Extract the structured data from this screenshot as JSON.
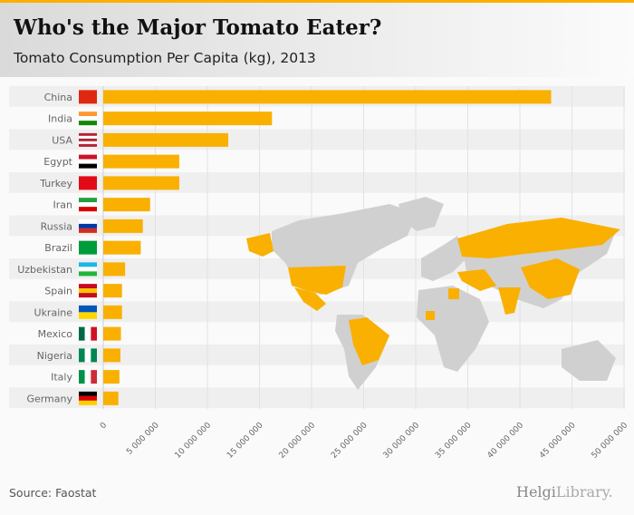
{
  "header": {
    "title": "Who's the Major Tomato Eater?",
    "subtitle": "Tomato Consumption Per Capita (kg), 2013"
  },
  "footer": {
    "source": "Source: Faostat",
    "logo_main": "Helgi",
    "logo_sub": "Library."
  },
  "colors": {
    "bar": "#f9b000",
    "accent": "#f9b000",
    "map_land": "#d0d0d0",
    "row_alt": "#efefef"
  },
  "chart_data": {
    "type": "bar",
    "orientation": "horizontal",
    "title": "Who's the Major Tomato Eater?",
    "subtitle": "Tomato Consumption Per Capita (kg), 2013",
    "categories": [
      "China",
      "India",
      "USA",
      "Egypt",
      "Turkey",
      "Iran",
      "Russia",
      "Brazil",
      "Uzbekistan",
      "Spain",
      "Ukraine",
      "Mexico",
      "Nigeria",
      "Italy",
      "Germany"
    ],
    "values": [
      43000000,
      16200000,
      12000000,
      7300000,
      7300000,
      4500000,
      3800000,
      3600000,
      2100000,
      1800000,
      1800000,
      1700000,
      1650000,
      1550000,
      1450000
    ],
    "xlim": [
      0,
      50000000
    ],
    "xticks": [
      0,
      5000000,
      10000000,
      15000000,
      20000000,
      25000000,
      30000000,
      35000000,
      40000000,
      45000000,
      50000000
    ],
    "xtick_labels": [
      "0",
      "5 000 000",
      "10 000 000",
      "15 000 000",
      "20 000 000",
      "25 000 000",
      "30 000 000",
      "35 000 000",
      "40 000 000",
      "45 000 000",
      "50 000 000"
    ],
    "grid": true,
    "flags": [
      [
        "#de2910"
      ],
      [
        "#ff9933",
        "#ffffff",
        "#138808"
      ],
      [
        "#b22234",
        "#ffffff",
        "#b22234",
        "#ffffff",
        "#b22234"
      ],
      [
        "#ce1126",
        "#ffffff",
        "#000000"
      ],
      [
        "#e30a17"
      ],
      [
        "#239f40",
        "#ffffff",
        "#da0000"
      ],
      [
        "#ffffff",
        "#0039a6",
        "#d52b1e"
      ],
      [
        "#009c3b"
      ],
      [
        "#1eb5e5",
        "#ffffff",
        "#1eb53a"
      ],
      [
        "#c60b1e",
        "#ffc400",
        "#c60b1e"
      ],
      [
        "#0057b7",
        "#ffd700"
      ],
      [
        "v",
        "#006847",
        "#ffffff",
        "#ce1126"
      ],
      [
        "v",
        "#008751",
        "#ffffff",
        "#008751"
      ],
      [
        "v",
        "#009246",
        "#ffffff",
        "#ce2b37"
      ],
      [
        "#000000",
        "#dd0000",
        "#ffce00"
      ]
    ]
  }
}
